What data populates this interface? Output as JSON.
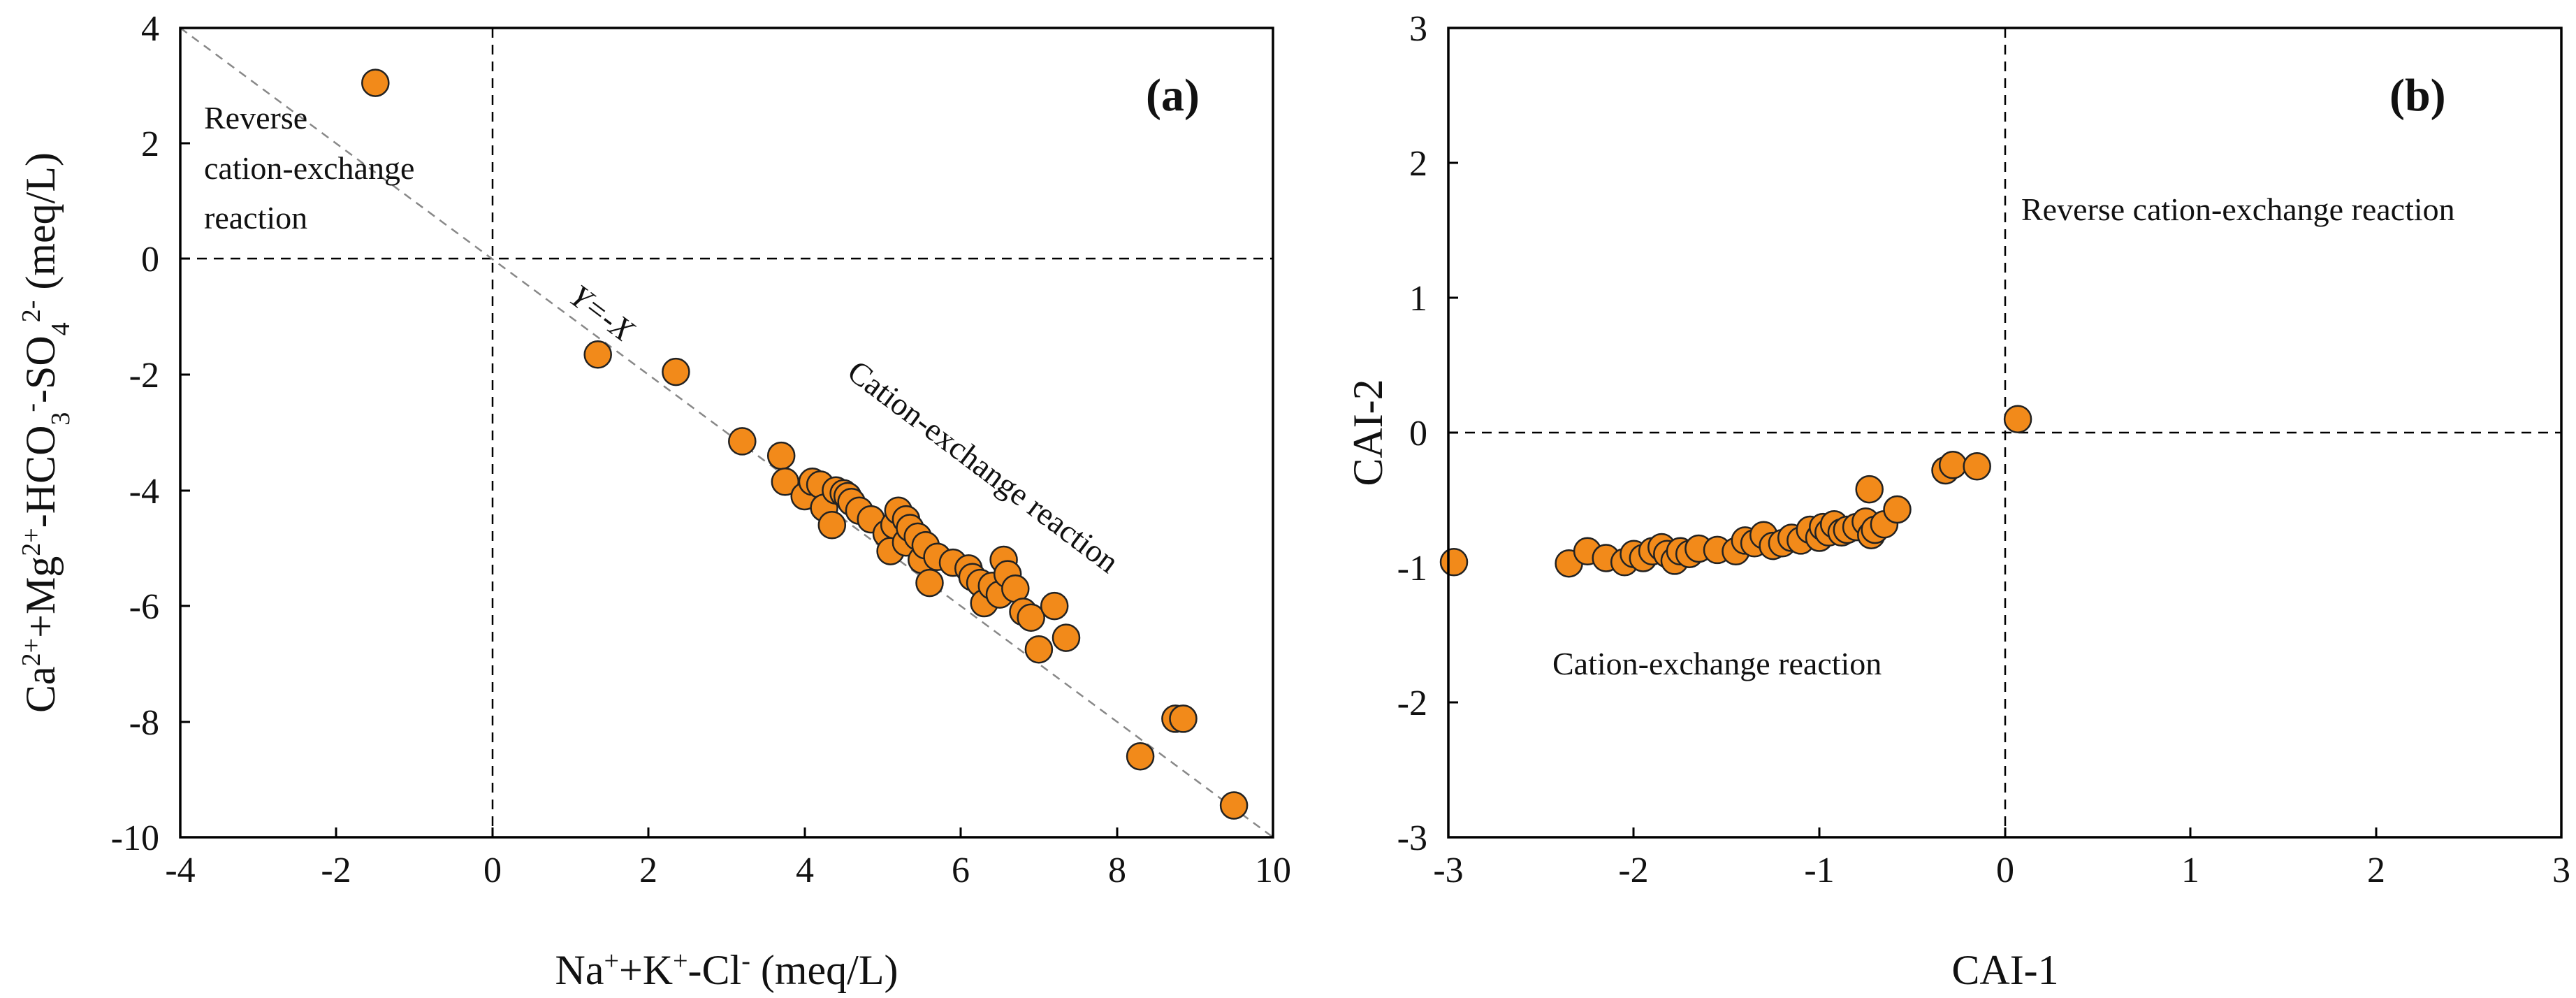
{
  "colors": {
    "point_fill": "#f28a1a",
    "point_stroke": "#222222",
    "reference_line": "#000000",
    "one_to_one_line": "#888888"
  },
  "chart_data": [
    {
      "type": "scatter",
      "panel_label": "(a)",
      "xlabel": "Na⁺+K⁺-Cl⁻ (meq/L)",
      "ylabel": "Ca²⁺+Mg²⁺-HCO₃⁻-SO₄²⁻ (meq/L)",
      "xlim": [
        -4,
        10
      ],
      "ylim": [
        -10,
        4
      ],
      "xticks": [
        -4,
        -2,
        0,
        2,
        4,
        6,
        8,
        10
      ],
      "yticks": [
        -10,
        -8,
        -6,
        -4,
        -2,
        0,
        2,
        4
      ],
      "reference_lines": {
        "x": 0,
        "y": 0
      },
      "diagonal_label": "Y=-X",
      "annotations": [
        {
          "lines": [
            "Reverse",
            "cation-exchange",
            "reaction"
          ]
        },
        {
          "lines": [
            "Cation-exchange reaction"
          ]
        }
      ],
      "points": [
        [
          -1.5,
          3.05
        ],
        [
          1.35,
          -1.65
        ],
        [
          2.35,
          -1.95
        ],
        [
          3.2,
          -3.15
        ],
        [
          3.7,
          -3.4
        ],
        [
          3.75,
          -3.85
        ],
        [
          4.0,
          -4.1
        ],
        [
          4.1,
          -3.85
        ],
        [
          4.2,
          -3.9
        ],
        [
          4.25,
          -4.3
        ],
        [
          4.35,
          -4.6
        ],
        [
          4.4,
          -4.0
        ],
        [
          4.5,
          -4.05
        ],
        [
          4.55,
          -4.1
        ],
        [
          4.6,
          -4.2
        ],
        [
          4.7,
          -4.35
        ],
        [
          4.85,
          -4.5
        ],
        [
          5.05,
          -4.75
        ],
        [
          5.1,
          -5.05
        ],
        [
          5.15,
          -4.6
        ],
        [
          5.2,
          -4.35
        ],
        [
          5.3,
          -4.5
        ],
        [
          5.3,
          -4.9
        ],
        [
          5.35,
          -4.65
        ],
        [
          5.45,
          -4.8
        ],
        [
          5.5,
          -5.2
        ],
        [
          5.55,
          -4.95
        ],
        [
          5.6,
          -5.6
        ],
        [
          5.7,
          -5.15
        ],
        [
          5.9,
          -5.25
        ],
        [
          6.1,
          -5.35
        ],
        [
          6.15,
          -5.5
        ],
        [
          6.25,
          -5.6
        ],
        [
          6.3,
          -5.95
        ],
        [
          6.4,
          -5.65
        ],
        [
          6.5,
          -5.8
        ],
        [
          6.55,
          -5.2
        ],
        [
          6.6,
          -5.45
        ],
        [
          6.7,
          -5.7
        ],
        [
          6.8,
          -6.1
        ],
        [
          6.9,
          -6.2
        ],
        [
          7.0,
          -6.75
        ],
        [
          7.2,
          -6.0
        ],
        [
          7.35,
          -6.55
        ],
        [
          8.3,
          -8.6
        ],
        [
          8.75,
          -7.95
        ],
        [
          8.85,
          -7.95
        ],
        [
          9.5,
          -9.45
        ]
      ]
    },
    {
      "type": "scatter",
      "panel_label": "(b)",
      "xlabel": "CAI-1",
      "ylabel": "CAI-2",
      "xlim": [
        -3,
        3
      ],
      "ylim": [
        -3,
        3
      ],
      "xticks": [
        -3,
        -2,
        -1,
        0,
        1,
        2,
        3
      ],
      "yticks": [
        -3,
        -2,
        -1,
        0,
        1,
        2,
        3
      ],
      "reference_lines": {
        "x": 0,
        "y": 0
      },
      "annotations": [
        {
          "lines": [
            "Reverse cation-exchange reaction"
          ]
        },
        {
          "lines": [
            "Cation-exchange reaction"
          ]
        }
      ],
      "points": [
        [
          -2.97,
          -0.96
        ],
        [
          -2.35,
          -0.97
        ],
        [
          -2.25,
          -0.88
        ],
        [
          -2.15,
          -0.93
        ],
        [
          -2.05,
          -0.96
        ],
        [
          -2.0,
          -0.9
        ],
        [
          -1.95,
          -0.93
        ],
        [
          -1.9,
          -0.88
        ],
        [
          -1.85,
          -0.85
        ],
        [
          -1.82,
          -0.9
        ],
        [
          -1.78,
          -0.95
        ],
        [
          -1.75,
          -0.88
        ],
        [
          -1.7,
          -0.9
        ],
        [
          -1.65,
          -0.86
        ],
        [
          -1.55,
          -0.87
        ],
        [
          -1.45,
          -0.88
        ],
        [
          -1.4,
          -0.8
        ],
        [
          -1.35,
          -0.82
        ],
        [
          -1.3,
          -0.76
        ],
        [
          -1.25,
          -0.84
        ],
        [
          -1.2,
          -0.82
        ],
        [
          -1.15,
          -0.78
        ],
        [
          -1.1,
          -0.8
        ],
        [
          -1.05,
          -0.72
        ],
        [
          -1.0,
          -0.78
        ],
        [
          -0.98,
          -0.7
        ],
        [
          -0.95,
          -0.74
        ],
        [
          -0.92,
          -0.68
        ],
        [
          -0.88,
          -0.74
        ],
        [
          -0.85,
          -0.72
        ],
        [
          -0.8,
          -0.7
        ],
        [
          -0.75,
          -0.66
        ],
        [
          -0.72,
          -0.76
        ],
        [
          -0.7,
          -0.72
        ],
        [
          -0.73,
          -0.42
        ],
        [
          -0.65,
          -0.68
        ],
        [
          -0.58,
          -0.57
        ],
        [
          -0.32,
          -0.28
        ],
        [
          -0.28,
          -0.24
        ],
        [
          -0.15,
          -0.25
        ],
        [
          0.07,
          0.1
        ]
      ]
    }
  ]
}
